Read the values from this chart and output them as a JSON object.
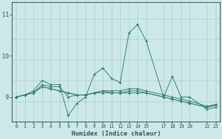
{
  "xlabel": "Humidex (Indice chaleur)",
  "bg_color": "#cce8e8",
  "line_color": "#2e7d72",
  "grid_color": "#aacccc",
  "axis_color": "#3a6060",
  "text_color": "#2e5555",
  "ylim": [
    8.4,
    11.3
  ],
  "xlim": [
    -0.5,
    23.5
  ],
  "xticks": [
    0,
    1,
    2,
    3,
    4,
    5,
    6,
    7,
    8,
    9,
    10,
    11,
    12,
    13,
    14,
    15,
    17,
    18,
    19,
    20,
    22,
    23
  ],
  "xtick_labels": [
    "0",
    "1",
    "2",
    "3",
    "4",
    "5",
    "6",
    "7",
    "8",
    "9",
    "10",
    "11",
    "12",
    "13",
    "14",
    "15",
    "17",
    "18",
    "19",
    "20",
    "22",
    "23"
  ],
  "yticks": [
    9,
    10,
    11
  ],
  "x_positions": [
    0,
    1,
    2,
    3,
    4,
    5,
    6,
    7,
    8,
    9,
    10,
    11,
    12,
    13,
    14,
    15,
    17,
    18,
    19,
    20,
    22,
    23
  ],
  "series": [
    [
      9.0,
      9.05,
      9.15,
      9.4,
      9.3,
      9.3,
      8.55,
      8.85,
      9.0,
      9.55,
      9.7,
      9.45,
      9.35,
      10.55,
      10.75,
      10.35,
      9.0,
      9.5,
      9.0,
      9.0,
      8.7,
      8.75
    ],
    [
      9.0,
      9.05,
      9.1,
      9.25,
      9.2,
      9.15,
      9.1,
      9.05,
      9.05,
      9.1,
      9.1,
      9.1,
      9.1,
      9.1,
      9.1,
      9.1,
      9.0,
      8.95,
      8.9,
      8.85,
      8.75,
      8.8
    ],
    [
      9.0,
      9.05,
      9.1,
      9.25,
      9.2,
      9.15,
      9.1,
      9.05,
      9.05,
      9.1,
      9.15,
      9.1,
      9.1,
      9.15,
      9.15,
      9.1,
      9.0,
      8.95,
      8.9,
      8.85,
      8.75,
      8.8
    ],
    [
      9.0,
      9.05,
      9.1,
      9.3,
      9.25,
      9.25,
      9.0,
      9.05,
      9.05,
      9.1,
      9.15,
      9.15,
      9.15,
      9.2,
      9.2,
      9.15,
      9.05,
      9.0,
      8.95,
      8.9,
      8.78,
      8.82
    ]
  ]
}
